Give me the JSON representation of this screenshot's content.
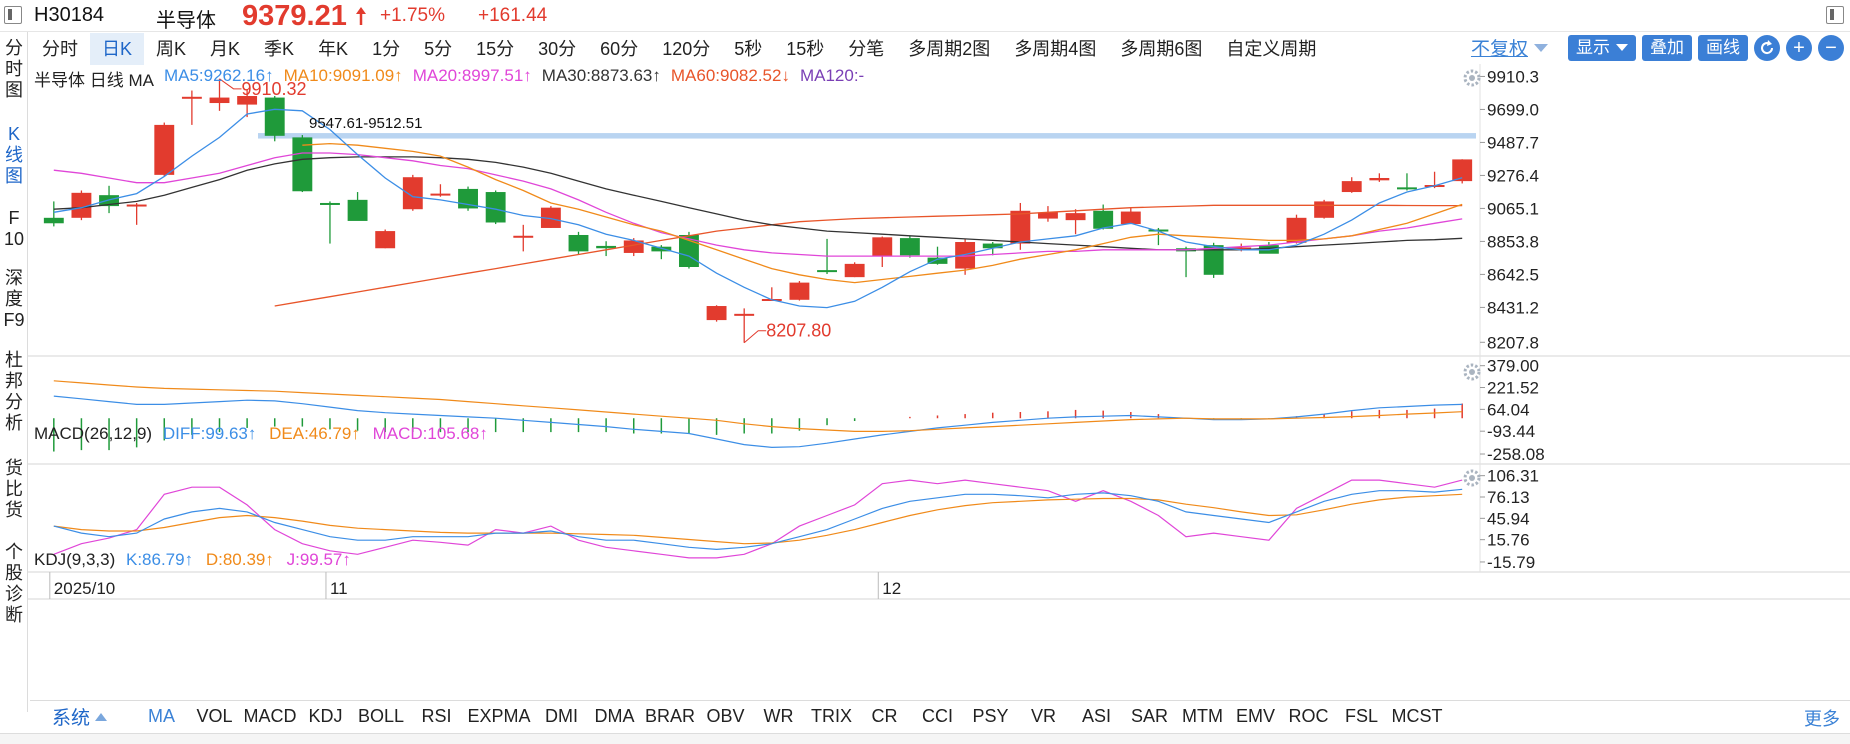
{
  "header": {
    "code": "H30184",
    "name": "半导体",
    "price": "9379.21",
    "change_pct": "+1.75%",
    "change": "+161.44",
    "up_color": "#e23b2e"
  },
  "periods": [
    "分时",
    "日K",
    "周K",
    "月K",
    "季K",
    "年K",
    "1分",
    "5分",
    "15分",
    "30分",
    "60分",
    "120分",
    "5秒",
    "15秒",
    "分笔",
    "多周期2图",
    "多周期4图",
    "多周期6图",
    "自定义周期"
  ],
  "toolbar": {
    "fuquan": "不复权",
    "display": "显示",
    "overlay": "叠加",
    "draw": "画线"
  },
  "sidebar": [
    {
      "label": "分\n时\n图"
    },
    {
      "label": "K\n线\n图"
    },
    {
      "label": "F\n10"
    },
    {
      "label": "深\n度\nF9"
    },
    {
      "label": "杜\n邦\n分\n析"
    },
    {
      "label": "货\n比\n货"
    },
    {
      "label": "个\n股\n诊\n断"
    }
  ],
  "ma_legend": {
    "prefix": "半导体  日线  MA",
    "ma5": "MA5:9262.16↑",
    "ma10": "MA10:9091.09↑",
    "ma20": "MA20:8997.51↑",
    "ma30": "MA30:8873.63↑",
    "ma60": "MA60:9082.52↓",
    "ma120": "MA120:-"
  },
  "macd_legend": {
    "label": "MACD(26,12,9)",
    "diff": "DIFF:99.63↑",
    "dea": "DEA:46.79↑",
    "macd": "MACD:105.68↑"
  },
  "kdj_legend": {
    "label": "KDJ(9,3,3)",
    "k": "K:86.79↑",
    "d": "D:80.39↑",
    "j": "J:99.57↑"
  },
  "annotations": {
    "high": "9910.32",
    "low": "8207.80",
    "band": "9547.61-9512.51"
  },
  "x_labels": [
    "2025/10",
    "11",
    "12"
  ],
  "colors": {
    "up": "#e23b2e",
    "down": "#1f9a3a",
    "ma5": "#3c8ee6",
    "ma10": "#f08a1a",
    "ma20": "#e046d8",
    "ma30": "#333333",
    "ma60": "#e8552a",
    "ma120": "#7a3fb5",
    "band": "#b9d4f1"
  },
  "indicators": [
    "MA",
    "VOL",
    "MACD",
    "KDJ",
    "BOLL",
    "RSI",
    "EXPMA",
    "DMI",
    "DMA",
    "BRAR",
    "OBV",
    "WR",
    "TRIX",
    "CR",
    "CCI",
    "PSY",
    "VR",
    "ASI",
    "SAR",
    "MTM",
    "EMV",
    "ROC",
    "FSL",
    "MCST"
  ],
  "indicators_system": "系统",
  "indicators_more": "更多",
  "chart_data": [
    {
      "type": "candlestick",
      "title": "",
      "y_ticks": [
        "9910.3",
        "9699.0",
        "9487.7",
        "9276.4",
        "9065.1",
        "8853.8",
        "8642.5",
        "8431.2",
        "8207.8"
      ],
      "ylim": [
        8120,
        9990
      ],
      "candles": [
        {
          "o": 9005,
          "h": 9110,
          "l": 8950,
          "c": 8970
        },
        {
          "o": 9005,
          "h": 9180,
          "l": 8990,
          "c": 9165
        },
        {
          "o": 9150,
          "h": 9210,
          "l": 9035,
          "c": 9080
        },
        {
          "o": 9080,
          "h": 9100,
          "l": 8960,
          "c": 9090
        },
        {
          "o": 9280,
          "h": 9615,
          "l": 9270,
          "c": 9600
        },
        {
          "o": 9770,
          "h": 9820,
          "l": 9600,
          "c": 9780
        },
        {
          "o": 9740,
          "h": 9895,
          "l": 9690,
          "c": 9775
        },
        {
          "o": 9730,
          "h": 9830,
          "l": 9650,
          "c": 9785
        },
        {
          "o": 9775,
          "h": 9785,
          "l": 9495,
          "c": 9530
        },
        {
          "o": 9520,
          "h": 9535,
          "l": 9170,
          "c": 9175
        },
        {
          "o": 9100,
          "h": 9110,
          "l": 8840,
          "c": 9090
        },
        {
          "o": 9120,
          "h": 9170,
          "l": 8990,
          "c": 8985
        },
        {
          "o": 8810,
          "h": 8930,
          "l": 8810,
          "c": 8920
        },
        {
          "o": 9060,
          "h": 9280,
          "l": 9050,
          "c": 9265
        },
        {
          "o": 9160,
          "h": 9220,
          "l": 9140,
          "c": 9160
        },
        {
          "o": 9190,
          "h": 9205,
          "l": 9050,
          "c": 9065
        },
        {
          "o": 9170,
          "h": 9180,
          "l": 8965,
          "c": 8975
        },
        {
          "o": 8890,
          "h": 8960,
          "l": 8790,
          "c": 8890
        },
        {
          "o": 8940,
          "h": 9080,
          "l": 8940,
          "c": 9070
        },
        {
          "o": 8895,
          "h": 8915,
          "l": 8770,
          "c": 8790
        },
        {
          "o": 8825,
          "h": 8855,
          "l": 8760,
          "c": 8810
        },
        {
          "o": 8780,
          "h": 8875,
          "l": 8760,
          "c": 8860
        },
        {
          "o": 8820,
          "h": 8830,
          "l": 8740,
          "c": 8790
        },
        {
          "o": 8895,
          "h": 8915,
          "l": 8680,
          "c": 8690
        },
        {
          "o": 8350,
          "h": 8445,
          "l": 8340,
          "c": 8440
        },
        {
          "o": 8390,
          "h": 8425,
          "l": 8205,
          "c": 8390
        },
        {
          "o": 8485,
          "h": 8560,
          "l": 8475,
          "c": 8485
        },
        {
          "o": 8480,
          "h": 8600,
          "l": 8475,
          "c": 8590
        },
        {
          "o": 8670,
          "h": 8870,
          "l": 8645,
          "c": 8665
        },
        {
          "o": 8625,
          "h": 8720,
          "l": 8625,
          "c": 8710
        },
        {
          "o": 8760,
          "h": 8885,
          "l": 8690,
          "c": 8880
        },
        {
          "o": 8875,
          "h": 8890,
          "l": 8750,
          "c": 8765
        },
        {
          "o": 8750,
          "h": 8820,
          "l": 8705,
          "c": 8710
        },
        {
          "o": 8680,
          "h": 8870,
          "l": 8640,
          "c": 8850
        },
        {
          "o": 8840,
          "h": 8850,
          "l": 8765,
          "c": 8810
        },
        {
          "o": 8840,
          "h": 9100,
          "l": 8800,
          "c": 9050
        },
        {
          "o": 9000,
          "h": 9080,
          "l": 8980,
          "c": 9040
        },
        {
          "o": 8990,
          "h": 9060,
          "l": 8900,
          "c": 9035
        },
        {
          "o": 9050,
          "h": 9090,
          "l": 8930,
          "c": 8935
        },
        {
          "o": 8965,
          "h": 9070,
          "l": 8965,
          "c": 9045
        },
        {
          "o": 8930,
          "h": 8940,
          "l": 8830,
          "c": 8925
        },
        {
          "o": 8810,
          "h": 8820,
          "l": 8625,
          "c": 8790
        },
        {
          "o": 8830,
          "h": 8845,
          "l": 8620,
          "c": 8640
        },
        {
          "o": 8800,
          "h": 8840,
          "l": 8790,
          "c": 8815
        },
        {
          "o": 8830,
          "h": 8850,
          "l": 8780,
          "c": 8775
        },
        {
          "o": 8845,
          "h": 9025,
          "l": 8840,
          "c": 9005
        },
        {
          "o": 9005,
          "h": 9120,
          "l": 9000,
          "c": 9110
        },
        {
          "o": 9170,
          "h": 9265,
          "l": 9165,
          "c": 9240
        },
        {
          "o": 9245,
          "h": 9290,
          "l": 9235,
          "c": 9260
        },
        {
          "o": 9200,
          "h": 9290,
          "l": 9180,
          "c": 9195
        },
        {
          "o": 9210,
          "h": 9300,
          "l": 9195,
          "c": 9215
        },
        {
          "o": 9240,
          "h": 9380,
          "l": 9225,
          "c": 9379
        }
      ],
      "ma5": [
        9040,
        9070,
        9120,
        9160,
        9270,
        9400,
        9520,
        9670,
        9700,
        9690,
        9570,
        9410,
        9260,
        9140,
        9120,
        9090,
        9060,
        9020,
        9000,
        8960,
        8900,
        8860,
        8810,
        8760,
        8650,
        8560,
        8480,
        8440,
        8430,
        8470,
        8560,
        8660,
        8740,
        8770,
        8810,
        8850,
        8870,
        8890,
        8940,
        8970,
        8920,
        8850,
        8820,
        8800,
        8800,
        8830,
        8900,
        8990,
        9100,
        9170,
        9210,
        9262
      ],
      "ma10": [
        null,
        null,
        null,
        null,
        null,
        null,
        null,
        null,
        null,
        9470,
        9480,
        9470,
        9450,
        9430,
        9400,
        9330,
        9250,
        9180,
        9100,
        9060,
        9010,
        8960,
        8920,
        8860,
        8800,
        8740,
        8680,
        8640,
        8610,
        8590,
        8610,
        8630,
        8650,
        8670,
        8700,
        8740,
        8770,
        8800,
        8840,
        8880,
        8900,
        8890,
        8880,
        8870,
        8860,
        8860,
        8870,
        8890,
        8930,
        8970,
        9030,
        9091
      ],
      "ma20": [
        9310,
        9290,
        9260,
        9230,
        9230,
        9260,
        9290,
        9340,
        9390,
        9420,
        9420,
        9410,
        9390,
        9370,
        9340,
        9320,
        9280,
        9240,
        9190,
        9120,
        9040,
        8970,
        8910,
        8870,
        8830,
        8800,
        8780,
        8770,
        8760,
        8760,
        8760,
        8760,
        8760,
        8760,
        8770,
        8780,
        8790,
        8790,
        8800,
        8800,
        8800,
        8800,
        8810,
        8820,
        8830,
        8850,
        8870,
        8890,
        8920,
        8940,
        8970,
        8998
      ],
      "ma30": [
        9060,
        9070,
        9090,
        9110,
        9150,
        9200,
        9250,
        9310,
        9350,
        9380,
        9390,
        9395,
        9395,
        9395,
        9390,
        9380,
        9360,
        9330,
        9290,
        9240,
        9190,
        9150,
        9110,
        9070,
        9030,
        8990,
        8960,
        8940,
        8920,
        8910,
        8900,
        8890,
        8880,
        8870,
        8860,
        8850,
        8840,
        8830,
        8820,
        8810,
        8800,
        8800,
        8800,
        8800,
        8810,
        8820,
        8830,
        8840,
        8850,
        8860,
        8865,
        8874
      ],
      "ma60": [
        null,
        null,
        null,
        null,
        null,
        null,
        null,
        null,
        8440,
        8470,
        8500,
        8530,
        8560,
        8590,
        8620,
        8650,
        8680,
        8710,
        8740,
        8770,
        8800,
        8830,
        8860,
        8890,
        8920,
        8940,
        8960,
        8980,
        8990,
        9000,
        9005,
        9010,
        9015,
        9020,
        9025,
        9030,
        9040,
        9050,
        9060,
        9070,
        9075,
        9080,
        9085,
        9085,
        9085,
        9085,
        9085,
        9085,
        9085,
        9084,
        9083,
        9083
      ]
    },
    {
      "type": "macd",
      "y_ticks": [
        "379.00",
        "221.52",
        "64.04",
        "-93.44",
        "-258.08"
      ],
      "ylim": [
        -330,
        420
      ],
      "diff": [
        160,
        140,
        120,
        100,
        100,
        110,
        120,
        130,
        125,
        105,
        80,
        55,
        40,
        30,
        20,
        10,
        0,
        -15,
        -30,
        -45,
        -60,
        -80,
        -95,
        -110,
        -150,
        -190,
        -210,
        -205,
        -180,
        -150,
        -120,
        -95,
        -70,
        -50,
        -30,
        -15,
        0,
        10,
        15,
        20,
        10,
        0,
        -10,
        -10,
        -5,
        10,
        30,
        55,
        75,
        85,
        95,
        100
      ],
      "dea": [
        270,
        255,
        240,
        225,
        215,
        210,
        205,
        200,
        195,
        185,
        175,
        165,
        155,
        145,
        135,
        120,
        105,
        90,
        75,
        60,
        45,
        30,
        15,
        0,
        -15,
        -40,
        -60,
        -75,
        -85,
        -95,
        -95,
        -90,
        -80,
        -70,
        -60,
        -50,
        -40,
        -30,
        -20,
        -10,
        -5,
        0,
        -5,
        -5,
        -5,
        0,
        5,
        12,
        20,
        30,
        38,
        47
      ],
      "hist": [
        -240,
        -230,
        -230,
        -210,
        -160,
        -120,
        -100,
        -70,
        -60,
        -60,
        -80,
        -90,
        -100,
        -100,
        -100,
        -100,
        -100,
        -100,
        -100,
        -100,
        -100,
        -110,
        -110,
        -110,
        -120,
        -110,
        -110,
        -90,
        -50,
        -20,
        0,
        10,
        20,
        30,
        40,
        45,
        50,
        60,
        55,
        45,
        30,
        0,
        -10,
        -10,
        -5,
        15,
        30,
        50,
        60,
        60,
        70,
        106
      ]
    },
    {
      "type": "kdj",
      "y_ticks": [
        "106.31",
        "76.13",
        "45.94",
        "15.76",
        "-15.79"
      ],
      "ylim": [
        -30,
        120
      ],
      "k": [
        35,
        25,
        20,
        25,
        45,
        55,
        60,
        55,
        40,
        30,
        20,
        15,
        15,
        20,
        20,
        20,
        25,
        25,
        28,
        20,
        15,
        15,
        10,
        5,
        2,
        5,
        10,
        20,
        30,
        45,
        60,
        70,
        75,
        80,
        80,
        78,
        75,
        80,
        82,
        78,
        70,
        55,
        50,
        45,
        40,
        55,
        70,
        80,
        85,
        85,
        83,
        87
      ],
      "d": [
        35,
        30,
        28,
        28,
        33,
        40,
        47,
        50,
        47,
        42,
        36,
        32,
        30,
        28,
        26,
        25,
        25,
        25,
        25,
        24,
        23,
        22,
        19,
        16,
        13,
        10,
        11,
        15,
        22,
        30,
        40,
        50,
        58,
        64,
        68,
        70,
        72,
        73,
        74,
        74,
        72,
        66,
        61,
        55,
        50,
        51,
        58,
        66,
        72,
        76,
        78,
        80
      ],
      "j": [
        -5,
        10,
        18,
        30,
        80,
        90,
        90,
        65,
        30,
        10,
        0,
        -5,
        5,
        15,
        12,
        8,
        30,
        25,
        35,
        15,
        5,
        0,
        -5,
        -10,
        -10,
        -5,
        10,
        35,
        50,
        65,
        95,
        100,
        95,
        100,
        95,
        90,
        85,
        70,
        85,
        70,
        50,
        20,
        25,
        20,
        15,
        60,
        80,
        100,
        100,
        95,
        90,
        100
      ]
    }
  ]
}
